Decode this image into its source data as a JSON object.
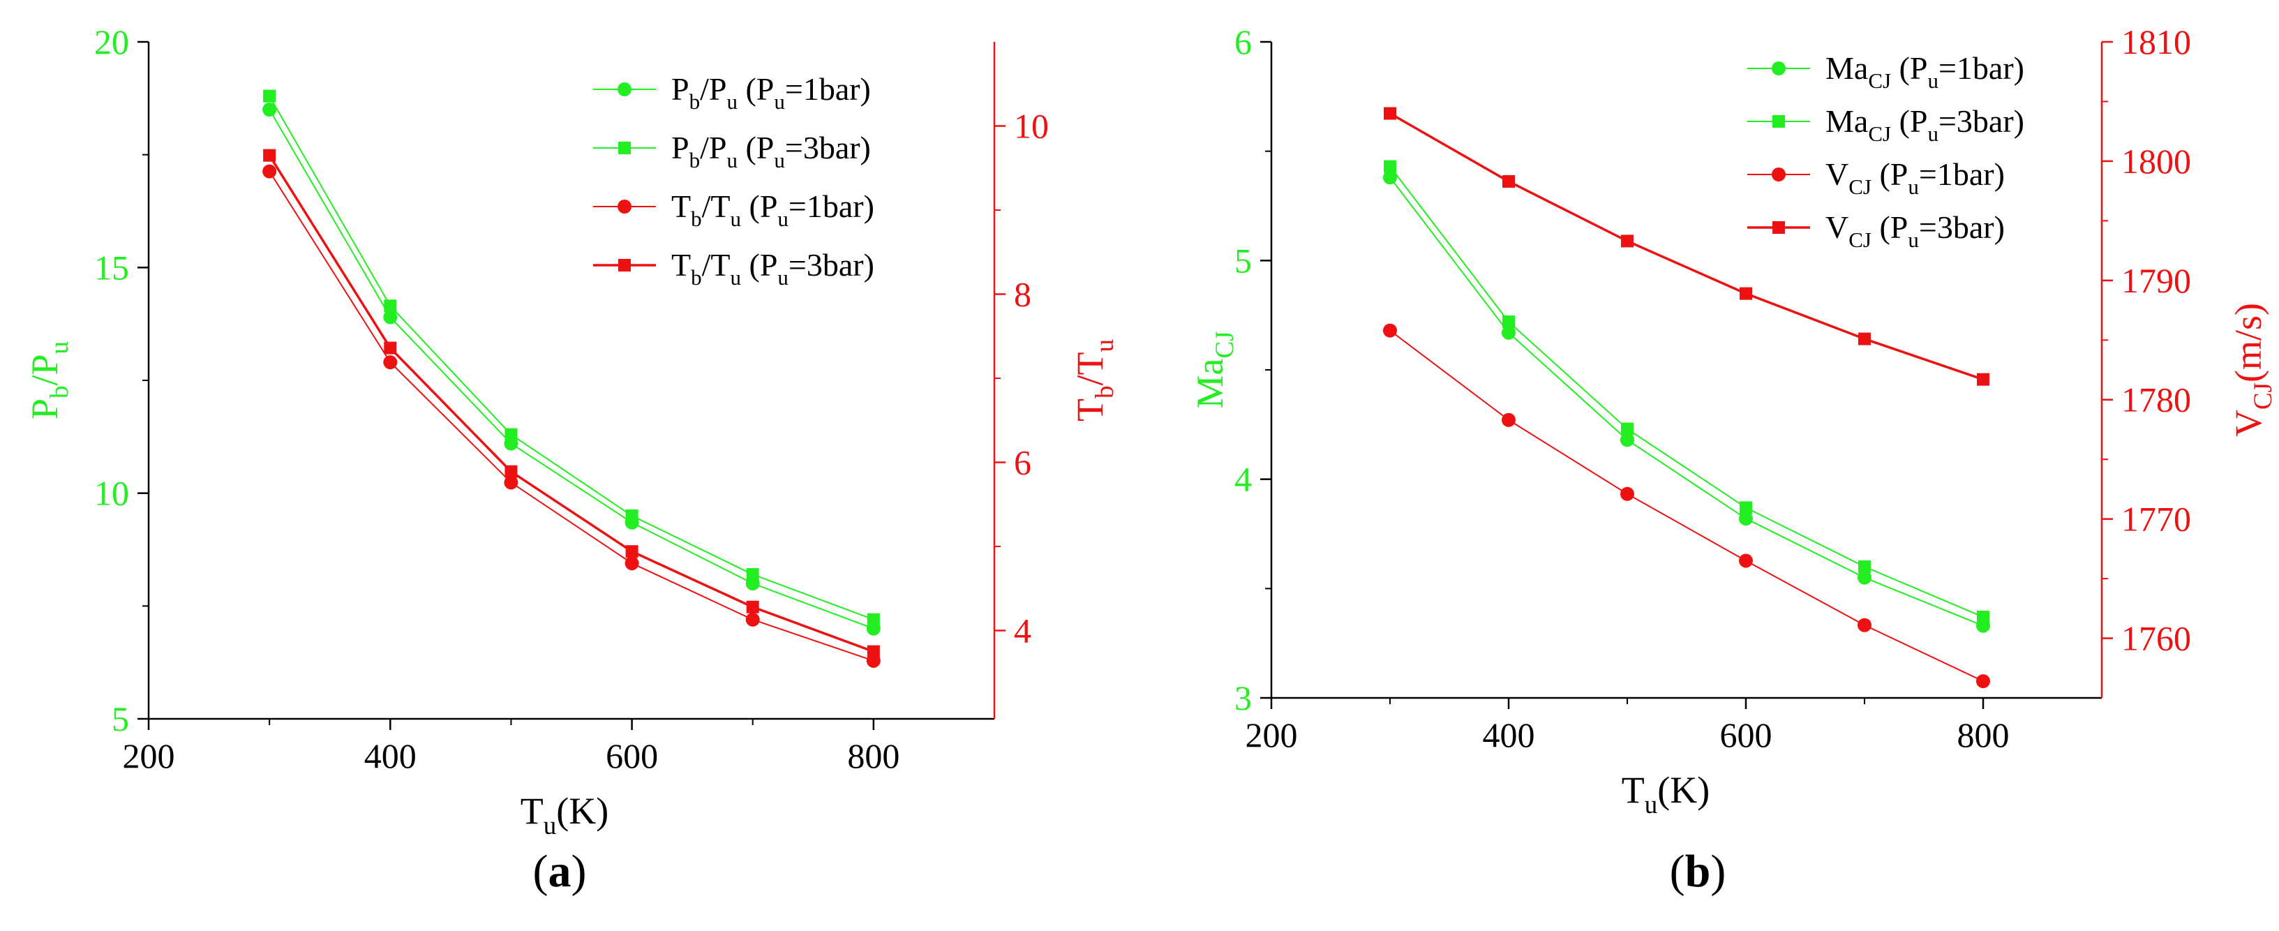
{
  "colors": {
    "green": "#22ee22",
    "red": "#ee1111",
    "axis": "#000000"
  },
  "chart_data": [
    {
      "panel_label_letter": "a",
      "type": "line",
      "x": [
        300,
        400,
        500,
        600,
        700,
        800
      ],
      "xlim": [
        200,
        900
      ],
      "x_ticks": [
        200,
        400,
        600,
        800
      ],
      "xlabel": {
        "main": "T",
        "sub": "u",
        "tail": "(K)"
      },
      "y_left": {
        "label": {
          "main1": "P",
          "sub1": "b",
          "mid": "/P",
          "sub2": "u"
        },
        "lim": [
          5,
          20
        ],
        "ticks": [
          5,
          10,
          15,
          20
        ],
        "color": "#22ee22"
      },
      "y_right": {
        "label": {
          "main1": "T",
          "sub1": "b",
          "mid": "/T",
          "sub2": "u"
        },
        "lim": [
          2.95,
          11.0
        ],
        "ticks": [
          4,
          6,
          8,
          10
        ],
        "color": "#ee1111"
      },
      "legend": "top-right",
      "series": [
        {
          "axis": "left",
          "marker": "circle",
          "color": "#22ee22",
          "legend": {
            "a": "P",
            "as": "b",
            "b": "/P",
            "bs": "u",
            "c": "  (P",
            "cs": "u",
            "d": "=1bar)"
          },
          "values": [
            18.5,
            13.9,
            11.1,
            9.35,
            8.0,
            7.0
          ]
        },
        {
          "axis": "left",
          "marker": "square",
          "color": "#22ee22",
          "legend": {
            "a": "P",
            "as": "b",
            "b": "/P",
            "bs": "u",
            "c": "  (P",
            "cs": "u",
            "d": "=3bar)"
          },
          "values": [
            18.8,
            14.15,
            11.3,
            9.5,
            8.2,
            7.2
          ]
        },
        {
          "axis": "right",
          "marker": "circle",
          "color": "#ee1111",
          "legend": {
            "a": "T",
            "as": "b",
            "b": "/T",
            "bs": "u",
            "c": "  (P",
            "cs": "u",
            "d": "=1bar)"
          },
          "values": [
            9.46,
            7.19,
            5.76,
            4.8,
            4.13,
            3.64
          ]
        },
        {
          "axis": "right",
          "marker": "square",
          "color": "#ee1111",
          "legend": {
            "a": "T",
            "as": "b",
            "b": "/T",
            "bs": "u",
            "c": "   (P",
            "cs": "u",
            "d": "=3bar)"
          },
          "values": [
            9.65,
            7.36,
            5.89,
            4.94,
            4.28,
            3.75
          ]
        }
      ]
    },
    {
      "panel_label_letter": "b",
      "type": "line",
      "x": [
        300,
        400,
        500,
        600,
        700,
        800
      ],
      "xlim": [
        200,
        900
      ],
      "x_ticks": [
        200,
        400,
        600,
        800
      ],
      "xlabel": {
        "main": "T",
        "sub": "u",
        "tail": "(K)"
      },
      "y_left": {
        "label": {
          "main1": "Ma",
          "sub1": "CJ"
        },
        "lim": [
          3,
          6
        ],
        "ticks": [
          3,
          4,
          5,
          6
        ],
        "color": "#22ee22"
      },
      "y_right": {
        "label": {
          "main1": "V",
          "sub1": "CJ",
          "tail": "(m/s)"
        },
        "lim": [
          1755,
          1810
        ],
        "ticks": [
          1760,
          1770,
          1780,
          1790,
          1800,
          1810
        ],
        "color": "#ee1111"
      },
      "legend": "top-right",
      "series": [
        {
          "axis": "left",
          "marker": "circle",
          "color": "#22ee22",
          "legend": {
            "a": "Ma",
            "as": "CJ",
            "b": " (P",
            "bs": "u",
            "c": "=1bar)"
          },
          "values": [
            5.38,
            4.67,
            4.18,
            3.82,
            3.55,
            3.33
          ]
        },
        {
          "axis": "left",
          "marker": "square",
          "color": "#22ee22",
          "legend": {
            "a": "Ma",
            "as": "CJ",
            "b": " (P",
            "bs": "u",
            "c": "=3bar)"
          },
          "values": [
            5.43,
            4.72,
            4.23,
            3.87,
            3.6,
            3.37
          ]
        },
        {
          "axis": "right",
          "marker": "circle",
          "color": "#ee1111",
          "legend": {
            "a": "V",
            "as": "CJ",
            "b": "    (P",
            "bs": "u",
            "c": "=1bar)"
          },
          "values": [
            1785.8,
            1778.3,
            1772.1,
            1766.5,
            1761.1,
            1756.4
          ]
        },
        {
          "axis": "right",
          "marker": "square",
          "color": "#ee1111",
          "legend": {
            "a": "V",
            "as": "CJ",
            "b": "    (P",
            "bs": "u",
            "c": "=3bar)"
          },
          "values": [
            1804.0,
            1798.3,
            1793.3,
            1788.9,
            1785.1,
            1781.7
          ]
        }
      ]
    }
  ]
}
